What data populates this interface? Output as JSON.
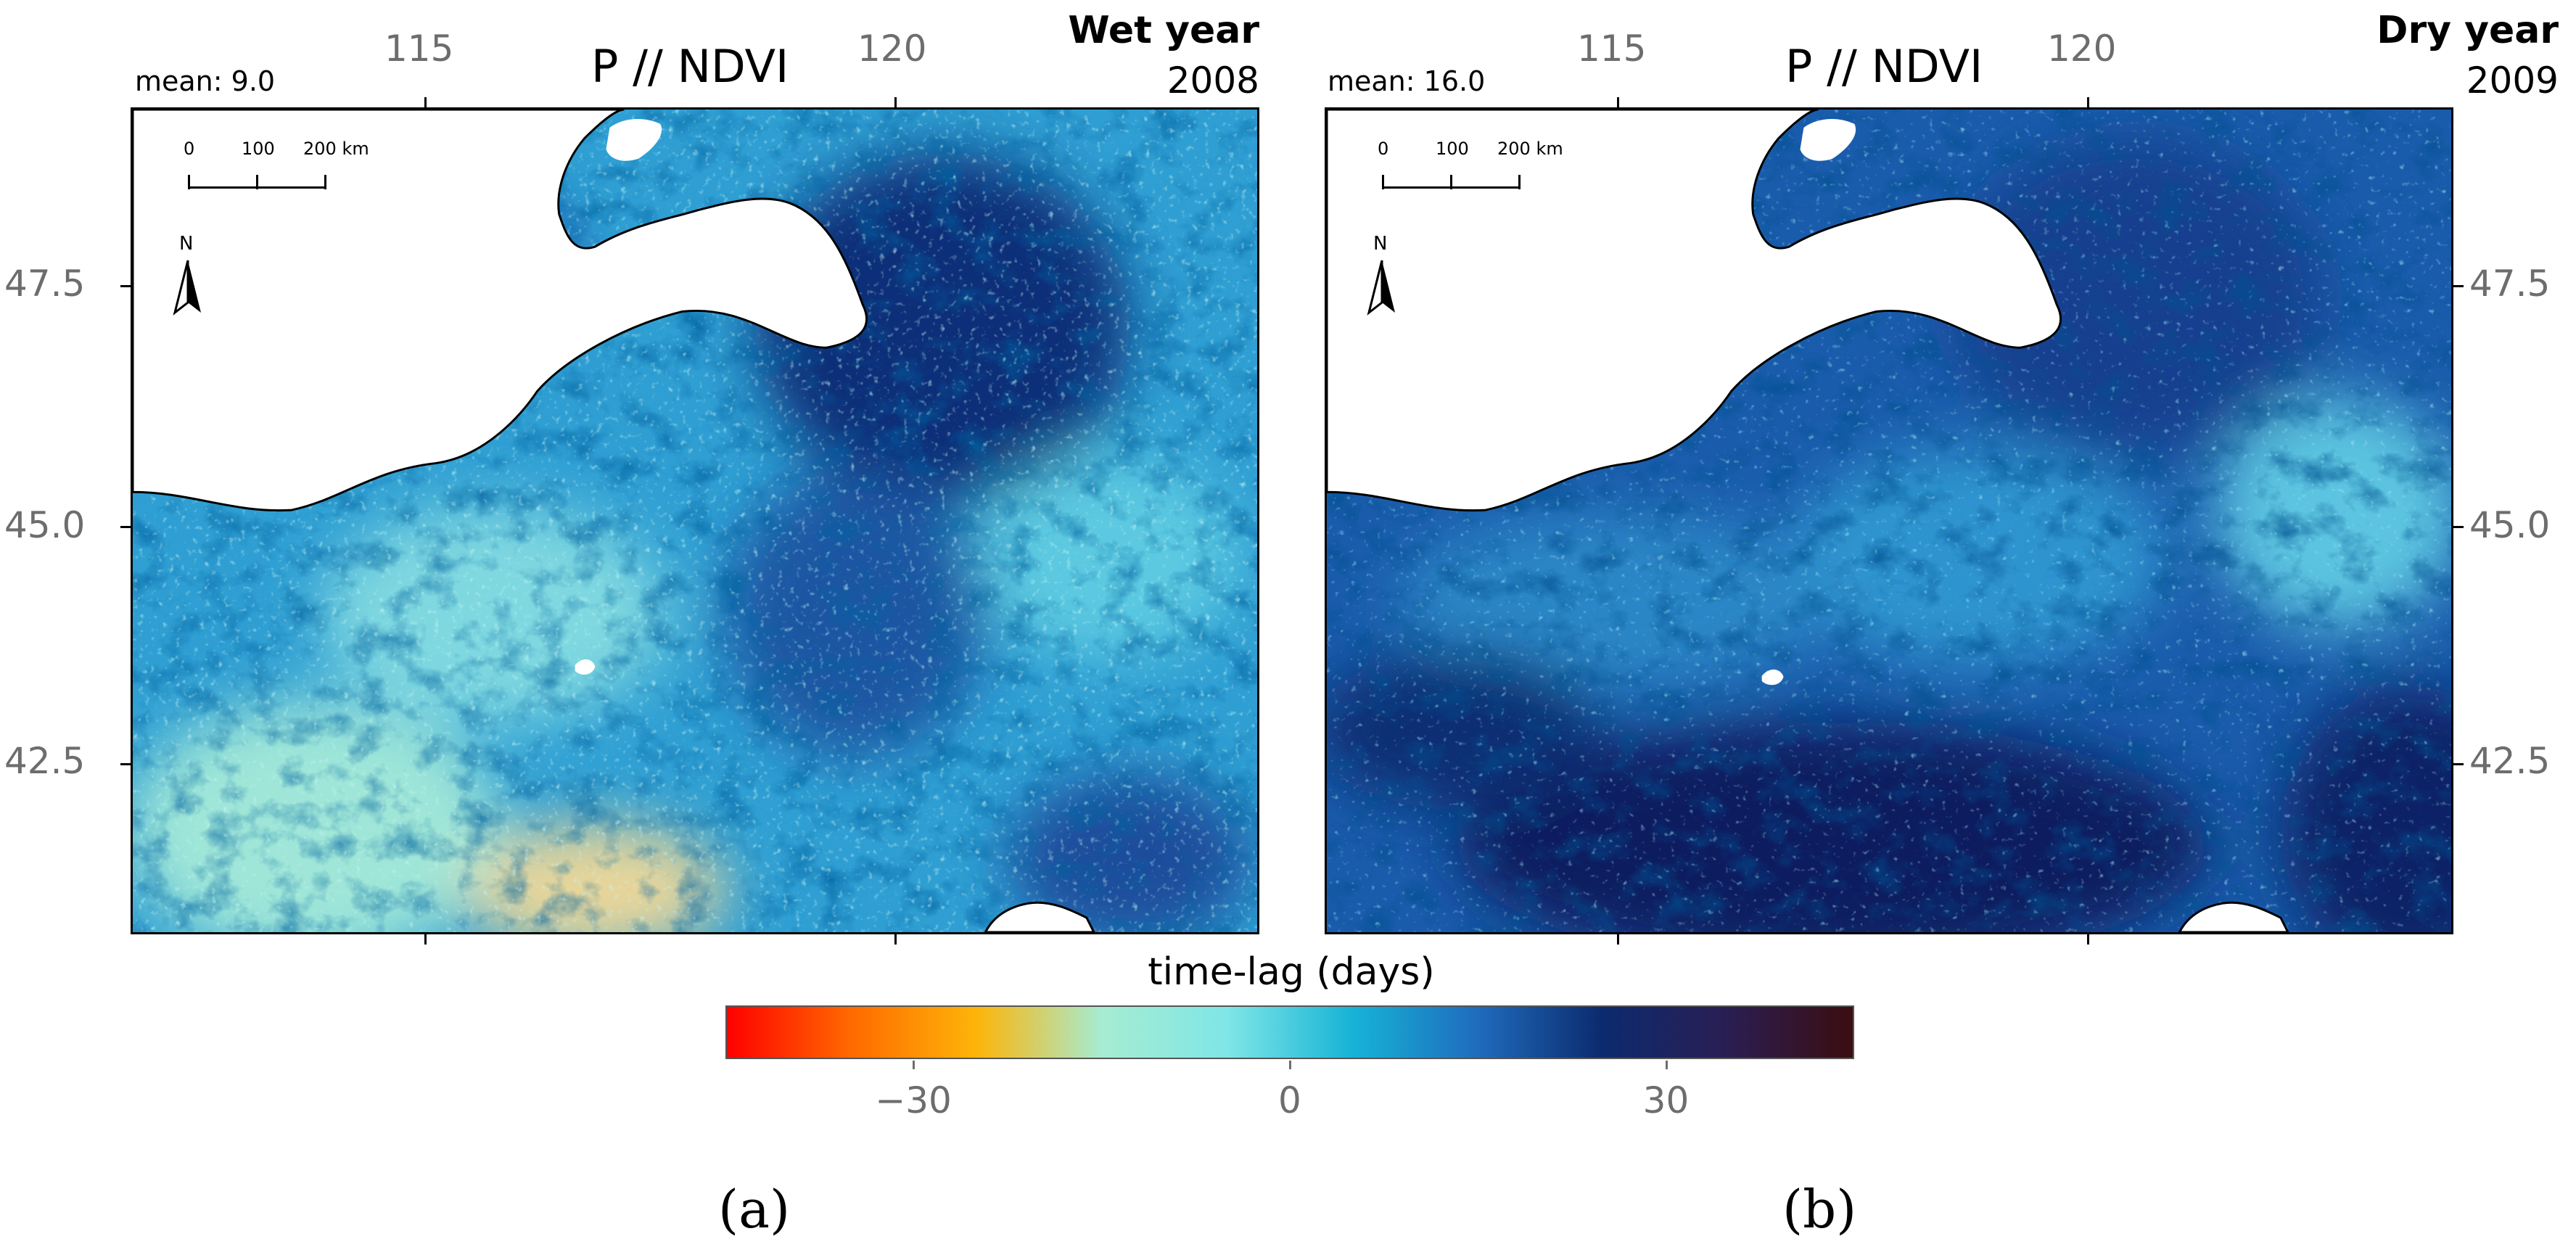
{
  "panels": [
    {
      "mean_label": "mean: 9.0",
      "title": "P // NDVI",
      "year_label": "Wet year",
      "year_value": "2008",
      "subfig_label": "(a)",
      "mean_lag_days": 9.0,
      "scale_bar": {
        "labels": [
          "0",
          "100",
          "200 km"
        ]
      },
      "north_label": "N"
    },
    {
      "mean_label": "mean: 16.0",
      "title": "P // NDVI",
      "year_label": "Dry year",
      "year_value": "2009",
      "subfig_label": "(b)",
      "mean_lag_days": 16.0,
      "scale_bar": {
        "labels": [
          "0",
          "100",
          "200 km"
        ]
      },
      "north_label": "N"
    }
  ],
  "axes": {
    "lon_ticks": [
      "115",
      "120"
    ],
    "lat_ticks": [
      "47.5",
      "45.0",
      "42.5"
    ]
  },
  "legend": {
    "title": "time-lag (days)",
    "range": [
      -45,
      45
    ],
    "tick_labels": [
      "−30",
      "0",
      "30"
    ],
    "tick_values": [
      -30,
      0,
      30
    ],
    "colors": [
      "#ff0000",
      "#ff6a00",
      "#fdb509",
      "#a6ecd2",
      "#7fe6e6",
      "#16b3d6",
      "#1f6cbd",
      "#0c2a6e",
      "#2a1e52",
      "#3b0d10"
    ]
  },
  "colors": {
    "water": "#ffffff",
    "coast_line": "#000000",
    "wet_dominant": "#2e9fd4",
    "dry_dominant": "#16468f"
  }
}
